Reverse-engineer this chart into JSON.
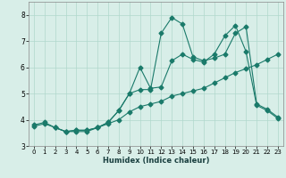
{
  "xlabel": "Humidex (Indice chaleur)",
  "bg_color": "#d8eee8",
  "grid_color": "#b0d8cc",
  "line_color": "#1a7a6a",
  "xlim": [
    -0.5,
    23.5
  ],
  "ylim": [
    3.0,
    8.5
  ],
  "yticks": [
    3,
    4,
    5,
    6,
    7,
    8
  ],
  "xticks": [
    0,
    1,
    2,
    3,
    4,
    5,
    6,
    7,
    8,
    9,
    10,
    11,
    12,
    13,
    14,
    15,
    16,
    17,
    18,
    19,
    20,
    21,
    22,
    23
  ],
  "line1_x": [
    0,
    1,
    2,
    3,
    4,
    5,
    6,
    7,
    8,
    9,
    10,
    11,
    12,
    13,
    14,
    15,
    16,
    17,
    18,
    19,
    20,
    21,
    22,
    23
  ],
  "line1_y": [
    3.8,
    3.9,
    3.7,
    3.55,
    3.55,
    3.55,
    3.7,
    3.85,
    4.0,
    4.3,
    4.5,
    4.6,
    4.7,
    4.9,
    5.0,
    5.1,
    5.2,
    5.4,
    5.6,
    5.8,
    5.95,
    6.1,
    6.3,
    6.5
  ],
  "line2_x": [
    0,
    1,
    2,
    3,
    4,
    5,
    6,
    7,
    8,
    9,
    10,
    11,
    12,
    13,
    14,
    15,
    16,
    17,
    18,
    19,
    20,
    21,
    22,
    23
  ],
  "line2_y": [
    3.75,
    3.85,
    3.7,
    3.55,
    3.6,
    3.6,
    3.7,
    3.9,
    4.35,
    5.0,
    5.15,
    5.15,
    7.3,
    7.9,
    7.65,
    6.4,
    6.25,
    6.35,
    6.5,
    7.3,
    7.55,
    4.6,
    4.4,
    4.1
  ],
  "line3_x": [
    2,
    3,
    4,
    5,
    6,
    7,
    8,
    9,
    10,
    11,
    12,
    13,
    14,
    15,
    16,
    17,
    18,
    19,
    20,
    21,
    22,
    23
  ],
  "line3_y": [
    3.7,
    3.55,
    3.6,
    3.6,
    3.7,
    3.9,
    4.35,
    5.0,
    6.0,
    5.2,
    5.25,
    6.25,
    6.5,
    6.3,
    6.2,
    6.5,
    7.2,
    7.6,
    6.6,
    4.55,
    4.35,
    4.05
  ],
  "marker_size": 2.5,
  "line_width": 0.8,
  "tick_fontsize": 5.0,
  "xlabel_fontsize": 6.0
}
